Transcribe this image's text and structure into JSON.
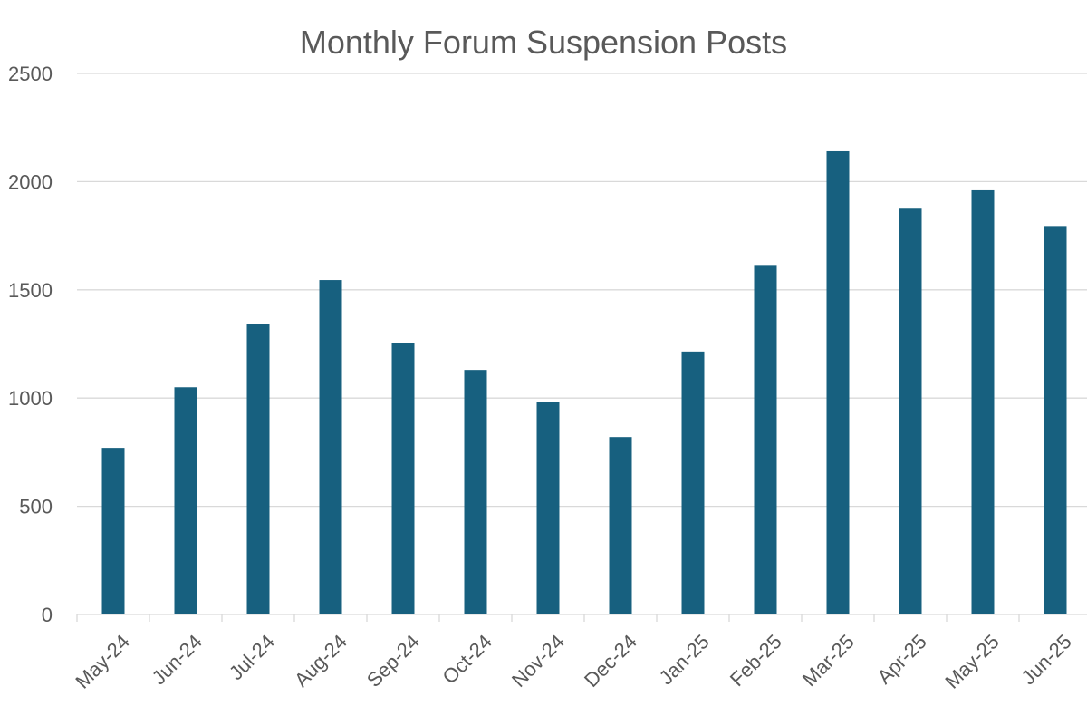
{
  "chart_data": {
    "type": "bar",
    "title": "Monthly Forum Suspension Posts",
    "xlabel": "",
    "ylabel": "",
    "categories": [
      "May-24",
      "Jun-24",
      "Jul-24",
      "Aug-24",
      "Sep-24",
      "Oct-24",
      "Nov-24",
      "Dec-24",
      "Jan-25",
      "Feb-25",
      "Mar-25",
      "Apr-25",
      "May-25",
      "Jun-25"
    ],
    "values": [
      770,
      1050,
      1340,
      1545,
      1255,
      1130,
      980,
      820,
      1215,
      1615,
      2140,
      1875,
      1960,
      1795
    ],
    "ylim": [
      0,
      2500
    ],
    "yticks": [
      "0",
      "500",
      "1000",
      "1500",
      "2000",
      "2500"
    ],
    "grid": true,
    "legend": "none",
    "colors": {
      "bar": "#17607f",
      "grid": "#d9d9d9",
      "text": "#595959"
    }
  }
}
